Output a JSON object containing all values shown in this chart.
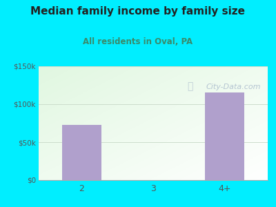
{
  "title": "Median family income by family size",
  "subtitle": "All residents in Oval, PA",
  "categories": [
    "2",
    "3",
    "4+"
  ],
  "values": [
    73000,
    0,
    115000
  ],
  "bar_color": "#b0a0cc",
  "bg_color": "#00eeff",
  "ylim": [
    0,
    150000
  ],
  "yticks": [
    0,
    50000,
    100000,
    150000
  ],
  "ytick_labels": [
    "$0",
    "$50k",
    "$100k",
    "$150k"
  ],
  "title_color": "#222222",
  "subtitle_color": "#3a8a6a",
  "watermark": "City-Data.com",
  "watermark_color": "#aabbcc",
  "grid_color": "#ccddcc"
}
